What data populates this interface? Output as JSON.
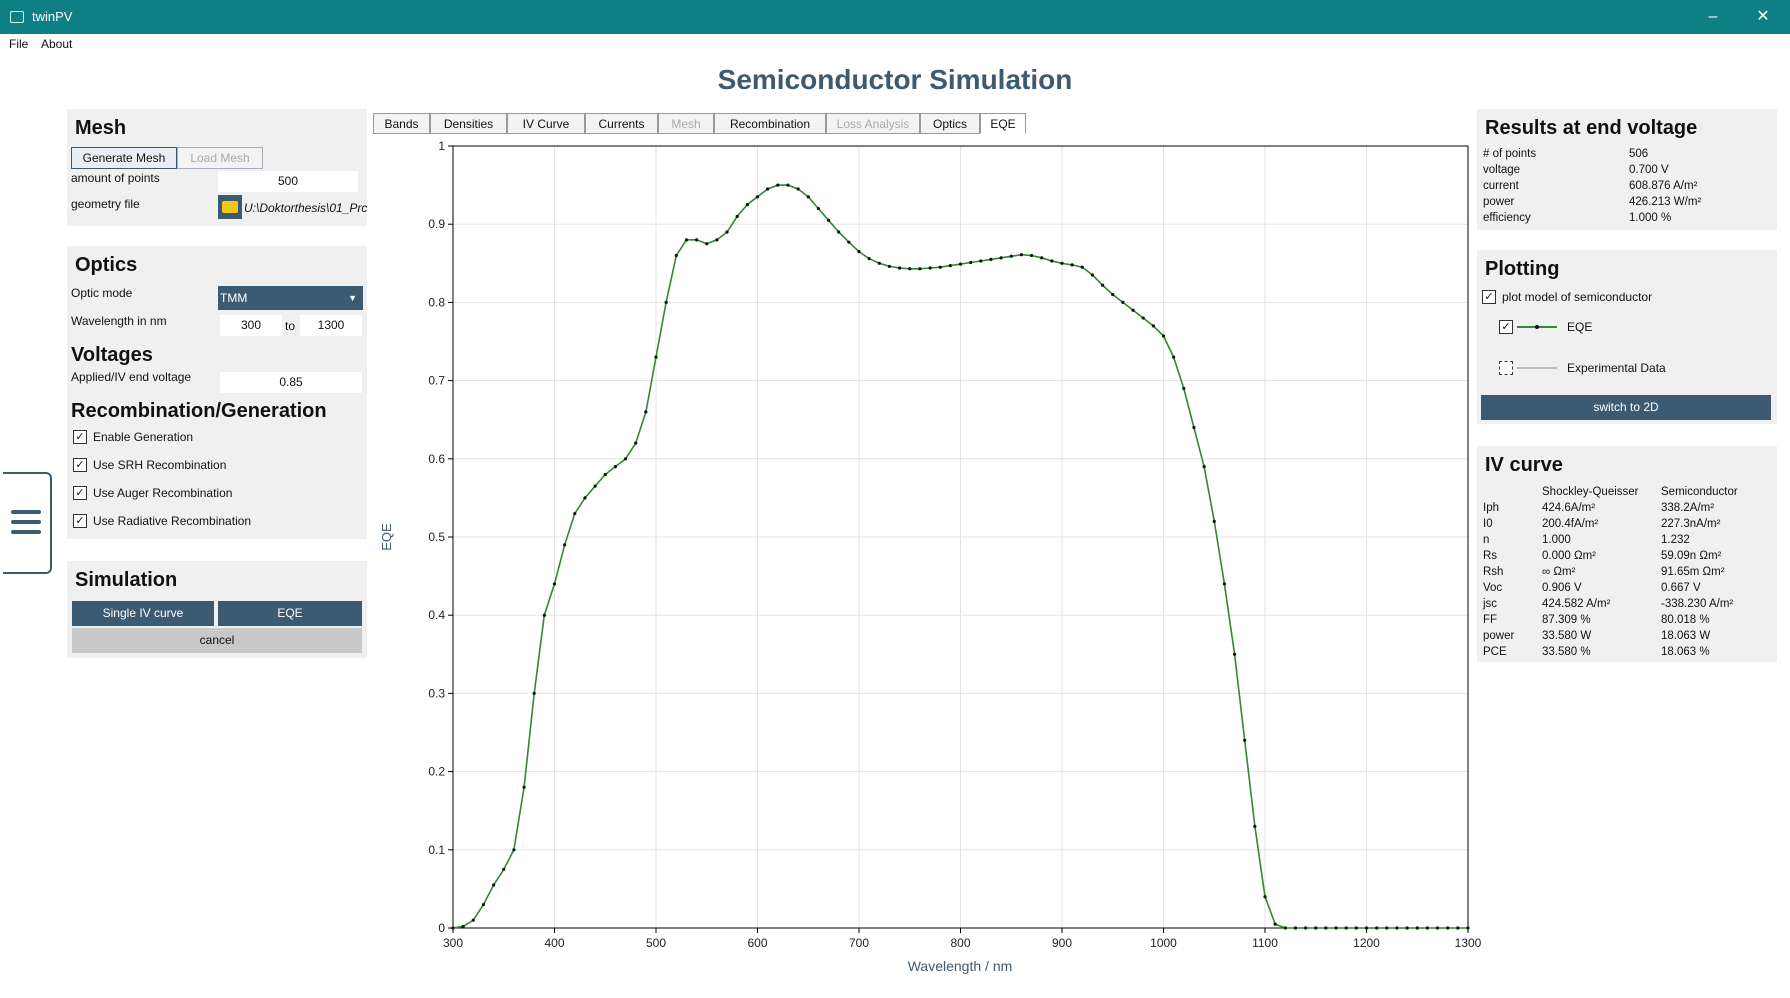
{
  "window": {
    "title": "twinPV",
    "minimize": "–",
    "maximize": "☐",
    "close": "✕"
  },
  "menu": {
    "file": "File",
    "about": "About"
  },
  "page_title": "Semiconductor Simulation",
  "mesh": {
    "title": "Mesh",
    "generate_btn": "Generate Mesh",
    "load_btn": "Load Mesh",
    "points_label": "amount of points",
    "points_value": "500",
    "geometry_label": "geometry file",
    "geometry_value": "U:\\Doktorthesis\\01_Prc",
    "folder_icon": "folder-icon"
  },
  "optics": {
    "title": "Optics",
    "mode_label": "Optic mode",
    "mode_value": "TMM",
    "wavelength_label": "Wavelength in nm",
    "wl_from": "300",
    "wl_to_label": "to",
    "wl_to": "1300"
  },
  "voltages": {
    "title": "Voltages",
    "end_voltage_label": "Applied/IV end voltage",
    "end_voltage_value": "0.85"
  },
  "recomb": {
    "title": "Recombination/Generation",
    "items": [
      {
        "label": "Enable Generation",
        "checked": true
      },
      {
        "label": "Use SRH Recombination",
        "checked": true
      },
      {
        "label": "Use Auger Recombination",
        "checked": true
      },
      {
        "label": "Use Radiative Recombination",
        "checked": true
      }
    ]
  },
  "simulation": {
    "title": "Simulation",
    "single_iv": "Single IV curve",
    "eqe": "EQE",
    "cancel": "cancel"
  },
  "tabs": [
    {
      "label": "Bands",
      "state": "normal"
    },
    {
      "label": "Densities",
      "state": "normal"
    },
    {
      "label": "IV Curve",
      "state": "normal"
    },
    {
      "label": "Currents",
      "state": "normal"
    },
    {
      "label": "Mesh",
      "state": "disabled"
    },
    {
      "label": "Recombination",
      "state": "normal"
    },
    {
      "label": "Loss Analysis",
      "state": "disabled"
    },
    {
      "label": "Optics",
      "state": "normal"
    },
    {
      "label": "EQE",
      "state": "active"
    }
  ],
  "results": {
    "title": "Results at end voltage",
    "rows": [
      {
        "label": "# of points",
        "value": "506"
      },
      {
        "label": "voltage",
        "value": "0.700 V"
      },
      {
        "label": "current",
        "value": "608.876 A/m²"
      },
      {
        "label": "power",
        "value": "426.213 W/m²"
      },
      {
        "label": "efficiency",
        "value": "1.000 %"
      }
    ]
  },
  "plotting": {
    "title": "Plotting",
    "model_label": "plot model of semiconductor",
    "model_checked": true,
    "series": [
      {
        "label": "EQE",
        "checked": true,
        "color": "#2e8b2e"
      },
      {
        "label": "Experimental Data",
        "checked": false,
        "color": "#bbbbbb"
      }
    ],
    "switch_btn": "switch to 2D"
  },
  "iv_curve": {
    "title": "IV curve",
    "col1": "Shockley-Queisser",
    "col2": "Semiconductor",
    "rows": [
      {
        "label": "Iph",
        "sq": "424.6A/m²",
        "sc": "338.2A/m²"
      },
      {
        "label": "I0",
        "sq": "200.4fA/m²",
        "sc": "227.3nA/m²"
      },
      {
        "label": "n",
        "sq": "1.000",
        "sc": "1.232"
      },
      {
        "label": "Rs",
        "sq": "0.000 Ωm²",
        "sc": "59.09n Ωm²"
      },
      {
        "label": "Rsh",
        "sq": "∞ Ωm²",
        "sc": "91.65m Ωm²"
      },
      {
        "label": "Voc",
        "sq": "0.906 V",
        "sc": "0.667 V"
      },
      {
        "label": "jsc",
        "sq": "424.582 A/m²",
        "sc": "-338.230 A/m²"
      },
      {
        "label": "FF",
        "sq": "87.309 %",
        "sc": "80.018 %"
      },
      {
        "label": "power",
        "sq": "33.580 W",
        "sc": "18.063 W"
      },
      {
        "label": "PCE",
        "sq": "33.580 %",
        "sc": "18.063 %"
      }
    ]
  },
  "chart_data": {
    "type": "line",
    "xlabel": "Wavelength  /  nm",
    "ylabel": "EQE",
    "xlim": [
      300,
      1300
    ],
    "ylim": [
      0,
      1
    ],
    "xticks": [
      "300",
      "400",
      "500",
      "600",
      "700",
      "800",
      "900",
      "1000",
      "1100",
      "1200",
      "1300"
    ],
    "yticks": [
      "0",
      "0.1",
      "0.2",
      "0.3",
      "0.4",
      "0.5",
      "0.6",
      "0.7",
      "0.8",
      "0.9",
      "1"
    ],
    "grid": true,
    "series": [
      {
        "name": "EQE",
        "color": "#2e8b2e",
        "x": [
          300,
          310,
          320,
          330,
          340,
          350,
          360,
          370,
          380,
          390,
          400,
          410,
          420,
          430,
          440,
          450,
          460,
          470,
          480,
          490,
          500,
          510,
          520,
          530,
          540,
          550,
          560,
          570,
          580,
          590,
          600,
          610,
          620,
          630,
          640,
          650,
          660,
          670,
          680,
          690,
          700,
          710,
          720,
          730,
          740,
          750,
          760,
          770,
          780,
          790,
          800,
          810,
          820,
          830,
          840,
          850,
          860,
          870,
          880,
          890,
          900,
          910,
          920,
          930,
          940,
          950,
          960,
          970,
          980,
          990,
          1000,
          1010,
          1020,
          1030,
          1040,
          1050,
          1060,
          1070,
          1080,
          1090,
          1100,
          1110,
          1120,
          1130,
          1140,
          1150,
          1160,
          1170,
          1180,
          1190,
          1200,
          1210,
          1220,
          1230,
          1240,
          1250,
          1260,
          1270,
          1280,
          1290,
          1300
        ],
        "y": [
          0.0,
          0.002,
          0.01,
          0.03,
          0.055,
          0.075,
          0.1,
          0.18,
          0.3,
          0.4,
          0.44,
          0.49,
          0.53,
          0.55,
          0.565,
          0.58,
          0.59,
          0.6,
          0.62,
          0.66,
          0.73,
          0.8,
          0.86,
          0.88,
          0.88,
          0.875,
          0.88,
          0.89,
          0.91,
          0.925,
          0.935,
          0.945,
          0.95,
          0.95,
          0.945,
          0.935,
          0.92,
          0.905,
          0.89,
          0.877,
          0.865,
          0.856,
          0.85,
          0.846,
          0.844,
          0.843,
          0.843,
          0.844,
          0.845,
          0.847,
          0.849,
          0.851,
          0.853,
          0.855,
          0.857,
          0.859,
          0.861,
          0.86,
          0.857,
          0.853,
          0.85,
          0.848,
          0.845,
          0.835,
          0.822,
          0.81,
          0.8,
          0.79,
          0.78,
          0.77,
          0.757,
          0.73,
          0.69,
          0.64,
          0.59,
          0.52,
          0.44,
          0.35,
          0.24,
          0.13,
          0.04,
          0.005,
          0.0,
          0.0,
          0.0,
          0.0,
          0.0,
          0.0,
          0.0,
          0.0,
          0.0,
          0.0,
          0.0,
          0.0,
          0.0,
          0.0,
          0.0,
          0.0,
          0.0,
          0.0,
          0.0
        ]
      }
    ]
  }
}
